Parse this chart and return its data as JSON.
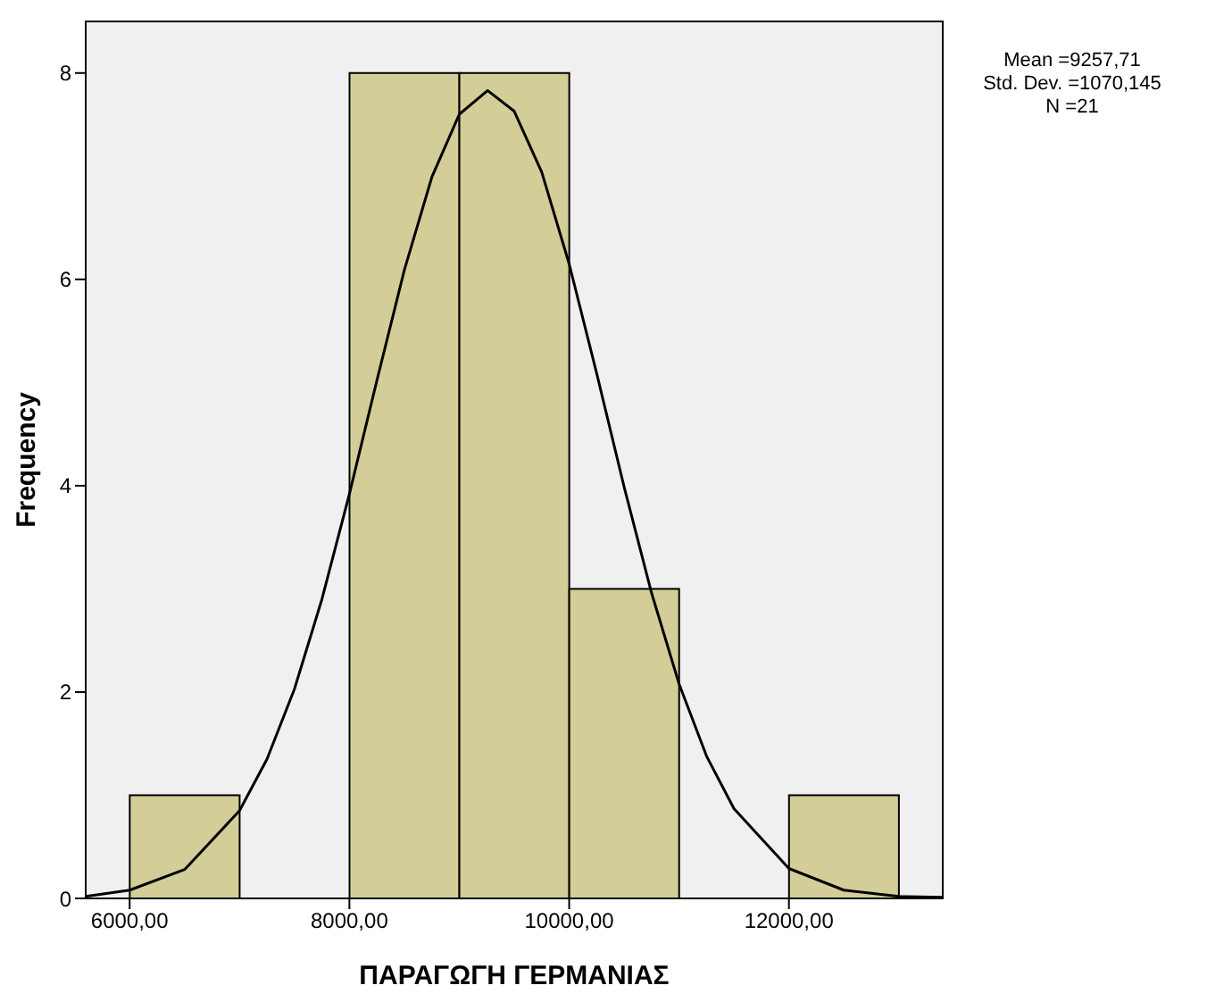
{
  "chart_data": {
    "type": "histogram",
    "xlabel": "ΠΑΡΑΓΩΓΗ ΓΕΡΜΑΝΙΑΣ",
    "ylabel": "Frequency",
    "bins": [
      6000,
      7000,
      8000,
      9000,
      10000,
      11000,
      12000,
      13000
    ],
    "values": [
      1,
      0,
      8,
      8,
      3,
      0,
      1
    ],
    "color": "#d3ce97",
    "series": [
      {
        "type": "line",
        "color": "#000000",
        "x": [
          5600,
          6000,
          6500,
          7000,
          7250,
          7500,
          7750,
          8000,
          8250,
          8500,
          8750,
          9000,
          9258,
          9500,
          9750,
          10000,
          10250,
          10500,
          10750,
          11000,
          11250,
          11500,
          12000,
          12500,
          13000,
          13400
        ],
        "values": [
          0.02,
          0.08,
          0.28,
          0.85,
          1.35,
          2.03,
          2.9,
          3.92,
          5.02,
          6.09,
          6.99,
          7.6,
          7.83,
          7.63,
          7.04,
          6.15,
          5.09,
          3.99,
          2.96,
          2.08,
          1.38,
          0.87,
          0.29,
          0.08,
          0.02,
          0.01
        ]
      }
    ],
    "xlim": [
      5600,
      13400
    ],
    "ylim": [
      0,
      8.5
    ],
    "xticks": [
      {
        "value": 6000,
        "label": "6000,00"
      },
      {
        "value": 8000,
        "label": "8000,00"
      },
      {
        "value": 10000,
        "label": "10000,00"
      },
      {
        "value": 12000,
        "label": "12000,00"
      }
    ],
    "yticks": [
      0,
      2,
      4,
      6,
      8
    ],
    "annotations": [
      "Mean =9257,71",
      "Std. Dev. =1070,145",
      "N =21"
    ]
  }
}
